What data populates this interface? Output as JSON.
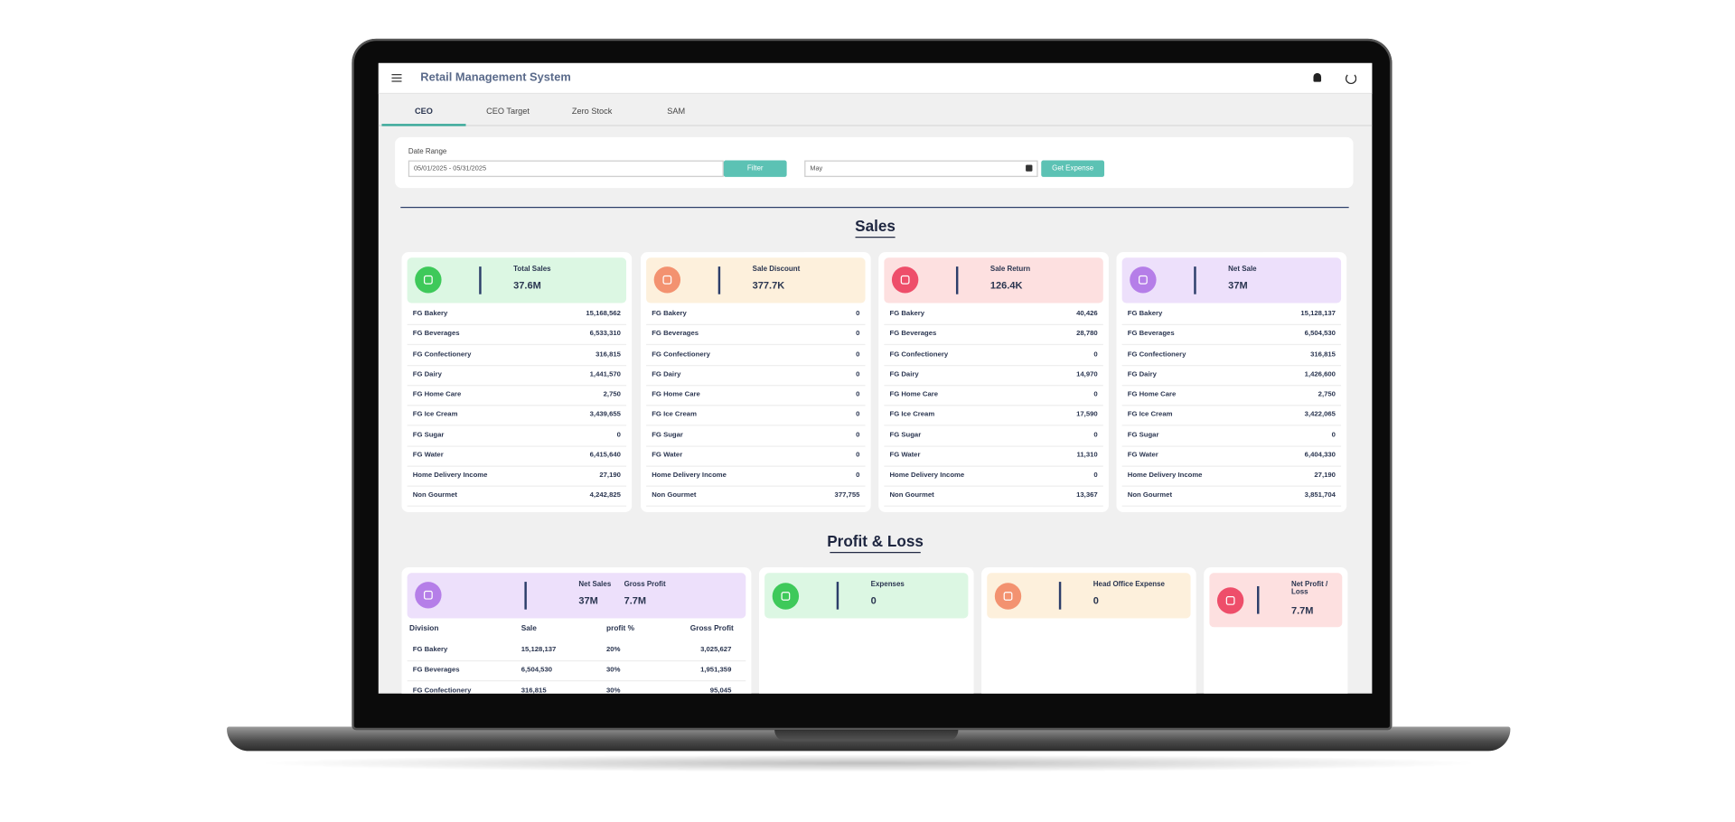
{
  "header": {
    "app_title": "Retail Management System"
  },
  "tabs": [
    "CEO",
    "CEO Target",
    "Zero Stock",
    "SAM"
  ],
  "filters": {
    "date_range_label": "Date Range",
    "date_range_value": "05/01/2025 - 05/31/2025",
    "filter_button": "Filter",
    "month_value": "May",
    "expense_button": "Get Expense"
  },
  "sales": {
    "title": "Sales",
    "divisions": [
      "FG Bakery",
      "FG Beverages",
      "FG Confectionery",
      "FG Dairy",
      "FG Home Care",
      "FG Ice Cream",
      "FG Sugar",
      "FG Water",
      "Home Delivery Income",
      "Non Gourmet"
    ],
    "cards": [
      {
        "title": "Total Sales",
        "total": "37.6M",
        "values": [
          "15,168,562",
          "6,533,310",
          "316,815",
          "1,441,570",
          "2,750",
          "3,439,655",
          "0",
          "6,415,640",
          "27,190",
          "4,242,825"
        ]
      },
      {
        "title": "Sale Discount",
        "total": "377.7K",
        "values": [
          "0",
          "0",
          "0",
          "0",
          "0",
          "0",
          "0",
          "0",
          "0",
          "377,755"
        ]
      },
      {
        "title": "Sale Return",
        "total": "126.4K",
        "values": [
          "40,426",
          "28,780",
          "0",
          "14,970",
          "0",
          "17,590",
          "0",
          "11,310",
          "0",
          "13,367"
        ]
      },
      {
        "title": "Net Sale",
        "total": "37M",
        "values": [
          "15,128,137",
          "6,504,530",
          "316,815",
          "1,426,600",
          "2,750",
          "3,422,065",
          "0",
          "6,404,330",
          "27,190",
          "3,851,704"
        ]
      }
    ]
  },
  "profit_loss": {
    "title": "Profit & Loss",
    "summary": {
      "net_sales_label": "Net Sales",
      "net_sales_value": "37M",
      "gross_profit_label": "Gross Profit",
      "gross_profit_value": "7.7M",
      "table": {
        "headers": [
          "Division",
          "Sale",
          "profit %",
          "Gross Profit"
        ],
        "rows": [
          [
            "FG Bakery",
            "15,128,137",
            "20%",
            "3,025,627"
          ],
          [
            "FG Beverages",
            "6,504,530",
            "30%",
            "1,951,359"
          ],
          [
            "FG Confectionery",
            "316,815",
            "30%",
            "95,045"
          ]
        ]
      }
    },
    "cards": [
      {
        "title": "Expenses",
        "value": "0"
      },
      {
        "title": "Head Office Expense",
        "value": "0"
      },
      {
        "title": "Net Profit / Loss",
        "value": "7.7M"
      }
    ]
  }
}
